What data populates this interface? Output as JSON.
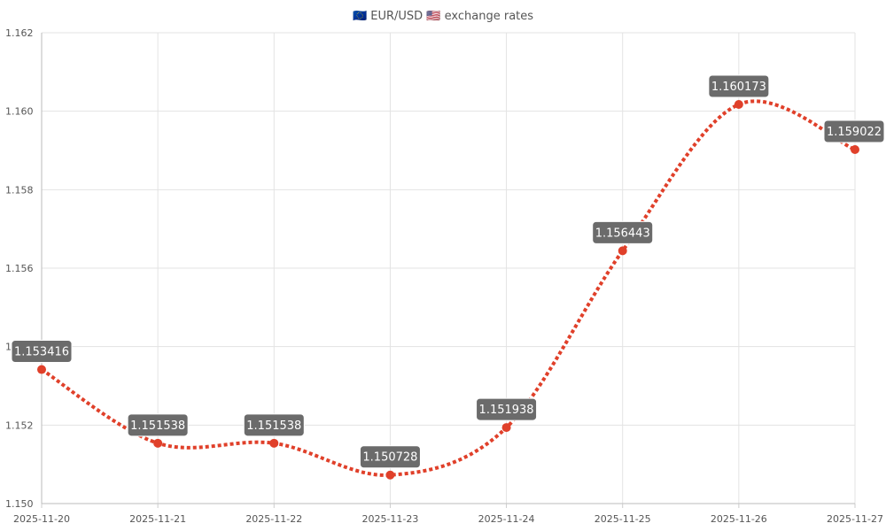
{
  "chart_data": {
    "type": "line",
    "title": "🇪🇺 EUR/USD 🇺🇸 exchange rates",
    "categories": [
      "2025-11-20",
      "2025-11-21",
      "2025-11-22",
      "2025-11-23",
      "2025-11-24",
      "2025-11-25",
      "2025-11-26",
      "2025-11-27"
    ],
    "series": [
      {
        "values": [
          1.153416,
          1.151538,
          1.151538,
          1.150728,
          1.151938,
          1.156443,
          1.160173,
          1.159022
        ],
        "labels": [
          "1.153416",
          "1.151538",
          "1.151538",
          "1.150728",
          "1.151938",
          "1.156443",
          "1.160173",
          "1.159022"
        ],
        "color": "#e0402a",
        "line_style": "dotted",
        "smooth": true
      }
    ],
    "y_ticks": [
      "1.150",
      "1.152",
      "1.154",
      "1.156",
      "1.158",
      "1.160",
      "1.162"
    ],
    "ylim": [
      1.15,
      1.162
    ],
    "xlabel": "",
    "ylabel": "",
    "grid": true,
    "label_background": "#6b6b6b"
  }
}
